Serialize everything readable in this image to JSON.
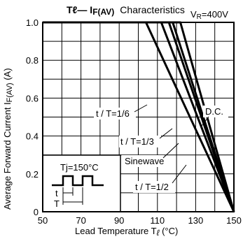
{
  "chart_data": {
    "type": "line",
    "title_parts": {
      "left": "Tℓ— I",
      "sub": "F(AV)",
      "right": "Characteristics"
    },
    "condition_text": {
      "main": "V",
      "sub": "R",
      "value": "=400V"
    },
    "xlabel": {
      "text": "Lead Temperature  T",
      "symbol": "ℓ",
      "unit": " (°C)"
    },
    "ylabel": {
      "text": "Average Forward Current  I",
      "sub": "F(AV)",
      "unit": " (A)"
    },
    "xlim": [
      50,
      150
    ],
    "ylim": [
      0,
      1.0
    ],
    "x_ticks": [
      50,
      70,
      90,
      110,
      130,
      150
    ],
    "y_ticks": [
      "0",
      "0.2",
      "0.4",
      "0.6",
      "0.8",
      "1.0"
    ],
    "y_tick_values": [
      0,
      0.2,
      0.4,
      0.6,
      0.8,
      1.0
    ],
    "grid": true,
    "series": [
      {
        "name": "t / T=1/6",
        "x": [
          50,
          104,
          150
        ],
        "y": [
          1.0,
          1.0,
          0
        ]
      },
      {
        "name": "t / T=1/3",
        "x": [
          50,
          112,
          150
        ],
        "y": [
          1.0,
          1.0,
          0
        ]
      },
      {
        "name": "Sinewave",
        "x": [
          50,
          116,
          150
        ],
        "y": [
          1.0,
          1.0,
          0
        ]
      },
      {
        "name": "t / T=1/2",
        "x": [
          50,
          118,
          150
        ],
        "y": [
          1.0,
          1.0,
          0
        ]
      },
      {
        "name": "D.C.",
        "x": [
          50,
          122,
          150
        ],
        "y": [
          1.0,
          1.0,
          0
        ]
      }
    ],
    "inset": {
      "label": "Tj=150°C",
      "t_label": "t",
      "T_label": "T"
    }
  }
}
